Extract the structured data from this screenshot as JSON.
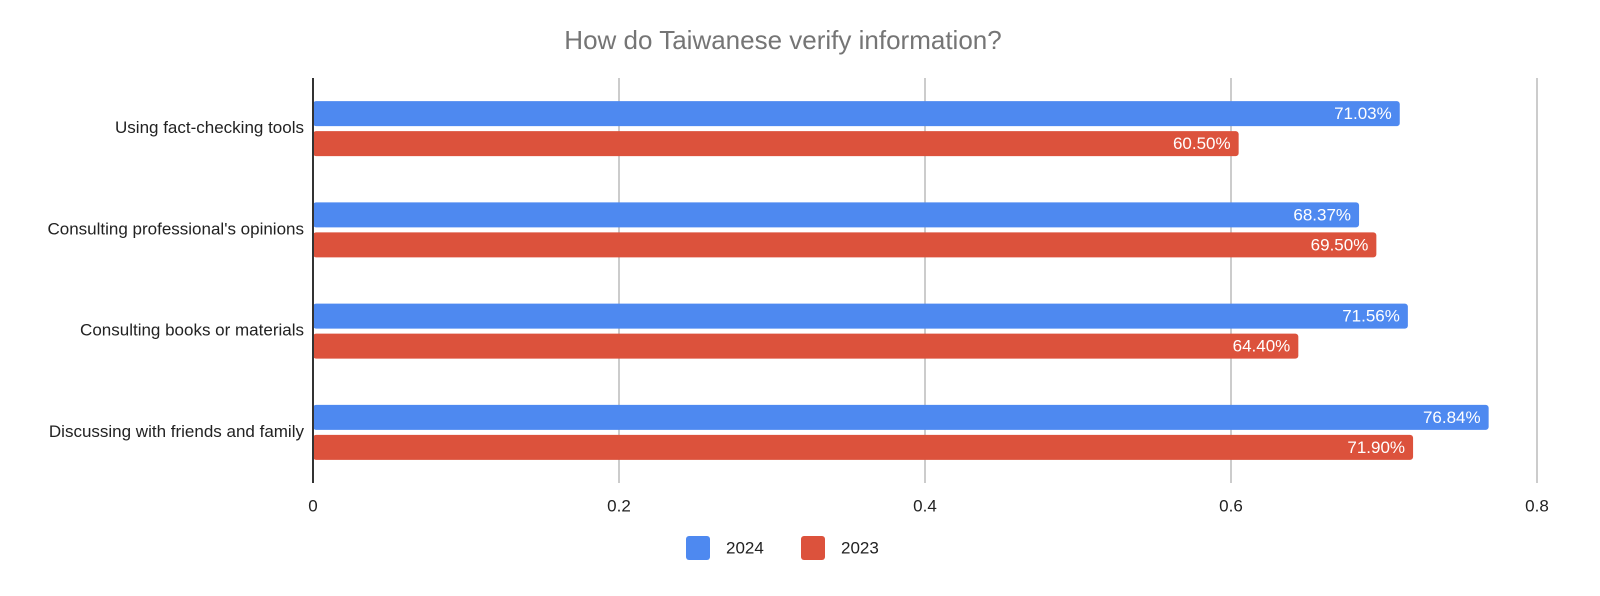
{
  "chart_data": {
    "type": "bar",
    "orientation": "horizontal",
    "title": "How do Taiwanese verify information?",
    "categories": [
      "Using fact-checking tools",
      "Consulting professional's opinions",
      "Consulting books or materials",
      "Discussing with friends and family"
    ],
    "series": [
      {
        "name": "2024",
        "color": "#4e89f0",
        "values": [
          0.7103,
          0.6837,
          0.7156,
          0.7684
        ],
        "value_labels": [
          "71.03%",
          "68.37%",
          "71.56%",
          "76.84%"
        ]
      },
      {
        "name": "2023",
        "color": "#dc523c",
        "values": [
          0.605,
          0.695,
          0.644,
          0.719
        ],
        "value_labels": [
          "60.50%",
          "69.50%",
          "64.40%",
          "71.90%"
        ]
      }
    ],
    "xlim": [
      0,
      0.8
    ],
    "xticks": [
      0,
      0.2,
      0.4,
      0.6,
      0.8
    ],
    "grid": true,
    "legend": "bottom"
  }
}
